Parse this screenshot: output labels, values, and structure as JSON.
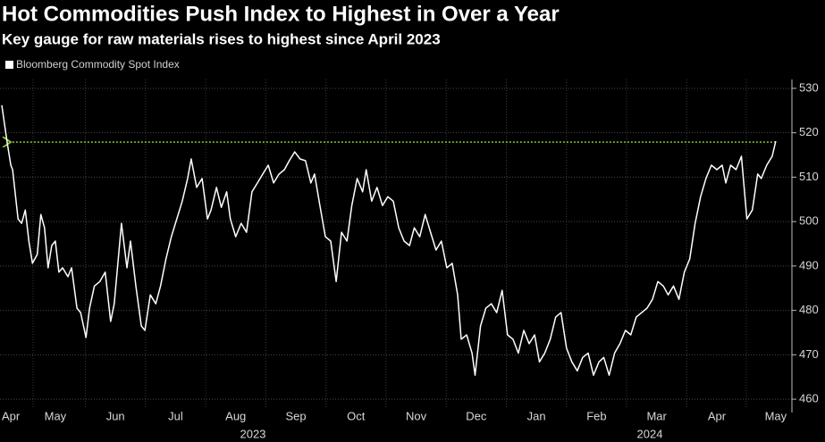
{
  "chart_data": {
    "type": "line",
    "title": "Hot Commodities Push Index to Highest in Over a Year",
    "subtitle": "Key gauge for raw materials rises to highest since April 2023",
    "xlim": [
      0.58,
      13.66
    ],
    "ylim": [
      457,
      532
    ],
    "yticks": [
      460,
      470,
      480,
      490,
      500,
      510,
      520,
      530
    ],
    "xticks": [
      {
        "value": 0.76,
        "label": "Apr"
      },
      {
        "value": 1.5,
        "label": "May"
      },
      {
        "value": 2.5,
        "label": "Jun"
      },
      {
        "value": 3.5,
        "label": "Jul"
      },
      {
        "value": 4.5,
        "label": "Aug"
      },
      {
        "value": 5.5,
        "label": "Sep"
      },
      {
        "value": 6.5,
        "label": "Oct"
      },
      {
        "value": 7.5,
        "label": "Nov"
      },
      {
        "value": 8.5,
        "label": "Dec"
      },
      {
        "value": 9.5,
        "label": "Jan"
      },
      {
        "value": 10.5,
        "label": "Feb"
      },
      {
        "value": 11.5,
        "label": "Mar"
      },
      {
        "value": 12.5,
        "label": "Apr"
      },
      {
        "value": 13.48,
        "label": "May"
      }
    ],
    "year_labels": [
      "2023",
      "2024"
    ],
    "grid": true,
    "reference_line": {
      "value": 517.9,
      "color": "#8dc63f"
    },
    "series": [
      {
        "name": "Bloomberg Commodity Spot Index",
        "color": "#ffffff",
        "x": [
          0.61,
          0.7,
          0.76,
          0.79,
          0.88,
          0.94,
          1.0,
          1.06,
          1.12,
          1.2,
          1.26,
          1.32,
          1.38,
          1.44,
          1.5,
          1.56,
          1.62,
          1.71,
          1.77,
          1.86,
          1.92,
          2.01,
          2.07,
          2.15,
          2.24,
          2.33,
          2.42,
          2.48,
          2.6,
          2.69,
          2.75,
          2.84,
          2.93,
          2.99,
          3.08,
          3.17,
          3.25,
          3.34,
          3.43,
          3.52,
          3.61,
          3.7,
          3.76,
          3.85,
          3.94,
          4.03,
          4.09,
          4.18,
          4.26,
          4.35,
          4.41,
          4.5,
          4.59,
          4.68,
          4.77,
          4.86,
          4.95,
          5.04,
          5.13,
          5.22,
          5.31,
          5.39,
          5.48,
          5.57,
          5.66,
          5.75,
          5.81,
          5.9,
          5.99,
          6.08,
          6.17,
          6.26,
          6.35,
          6.43,
          6.52,
          6.61,
          6.67,
          6.76,
          6.85,
          6.94,
          7.03,
          7.12,
          7.21,
          7.3,
          7.39,
          7.47,
          7.56,
          7.65,
          7.74,
          7.83,
          7.92,
          8.01,
          8.1,
          8.19,
          8.25,
          8.34,
          8.43,
          8.48,
          8.57,
          8.66,
          8.75,
          8.84,
          8.93,
          9.02,
          9.11,
          9.2,
          9.29,
          9.38,
          9.47,
          9.55,
          9.64,
          9.73,
          9.82,
          9.91,
          10.0,
          10.09,
          10.18,
          10.27,
          10.36,
          10.45,
          10.54,
          10.62,
          10.71,
          10.8,
          10.89,
          10.98,
          11.07,
          11.16,
          11.25,
          11.34,
          11.43,
          11.52,
          11.61,
          11.69,
          11.78,
          11.87,
          11.96,
          12.05,
          12.14,
          12.23,
          12.32,
          12.41,
          12.5,
          12.59,
          12.65,
          12.73,
          12.82,
          12.91,
          13.0,
          13.09,
          13.18,
          13.24,
          13.33,
          13.42,
          13.48
        ],
        "values": [
          526.2,
          517.7,
          512.7,
          511.7,
          500.6,
          499.6,
          502.6,
          495.6,
          490.6,
          492.6,
          501.6,
          498.6,
          489.6,
          494.6,
          495.6,
          488.6,
          489.6,
          487.6,
          489.6,
          480.5,
          479.5,
          473.9,
          480.5,
          485.5,
          486.5,
          488.6,
          477.5,
          481.5,
          499.6,
          489.6,
          495.6,
          485.5,
          476.5,
          475.5,
          483.5,
          481.5,
          485.5,
          491.6,
          496.6,
          500.6,
          504.6,
          509.7,
          514.1,
          507.7,
          509.7,
          500.6,
          502.6,
          507.7,
          503.2,
          506.7,
          500.6,
          496.6,
          499.6,
          497.6,
          506.7,
          508.7,
          510.7,
          512.7,
          508.7,
          510.7,
          511.7,
          513.7,
          515.7,
          514.1,
          513.7,
          508.7,
          510.7,
          503.6,
          496.6,
          495.6,
          486.5,
          497.6,
          495.6,
          503.6,
          509.7,
          506.7,
          511.7,
          504.6,
          507.7,
          503.6,
          505.6,
          504.6,
          498.6,
          495.6,
          494.6,
          498.6,
          496.6,
          501.6,
          497.6,
          493.6,
          495.6,
          489.6,
          490.6,
          483.5,
          473.5,
          474.5,
          470.4,
          465.4,
          476.5,
          480.5,
          481.5,
          479.5,
          484.5,
          474.5,
          473.5,
          470.4,
          475.5,
          472.5,
          474.5,
          468.4,
          470.4,
          473.5,
          478.5,
          479.5,
          471.5,
          468.4,
          466.4,
          469.4,
          470.4,
          465.4,
          468.4,
          469.4,
          465.4,
          470.4,
          472.5,
          475.5,
          474.5,
          478.5,
          479.5,
          480.5,
          482.5,
          486.5,
          485.5,
          483.5,
          485.5,
          482.5,
          488.6,
          491.6,
          499.6,
          505.6,
          509.7,
          512.7,
          511.7,
          512.7,
          508.7,
          512.7,
          511.7,
          514.7,
          500.6,
          502.6,
          510.7,
          509.7,
          512.7,
          514.7,
          518.1
        ]
      }
    ]
  }
}
